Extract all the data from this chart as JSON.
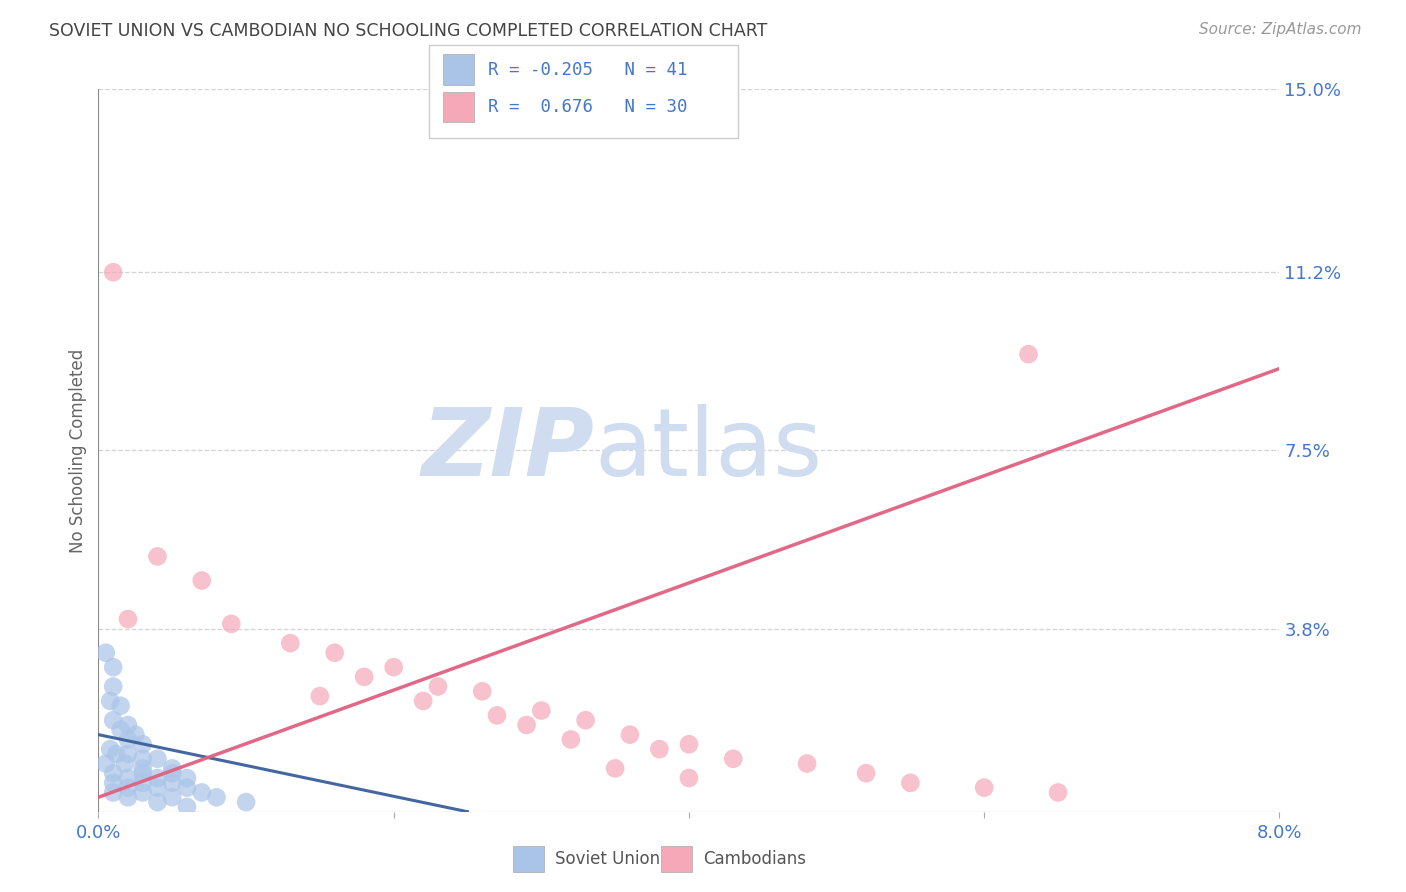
{
  "title": "SOVIET UNION VS CAMBODIAN NO SCHOOLING COMPLETED CORRELATION CHART",
  "source": "Source: ZipAtlas.com",
  "ylabel": "No Schooling Completed",
  "xlabel_soviet": "Soviet Union",
  "xlabel_cambodian": "Cambodians",
  "xlim": [
    0.0,
    0.08
  ],
  "ylim": [
    0.0,
    0.15
  ],
  "xticks": [
    0.0,
    0.02,
    0.04,
    0.06,
    0.08
  ],
  "xtick_labels": [
    "0.0%",
    "",
    "",
    "",
    "8.0%"
  ],
  "ytick_labels_right": [
    "15.0%",
    "11.2%",
    "7.5%",
    "3.8%",
    ""
  ],
  "ytick_positions_right": [
    0.15,
    0.112,
    0.075,
    0.038,
    0.0
  ],
  "soviet_R": -0.205,
  "soviet_N": 41,
  "cambodian_R": 0.676,
  "cambodian_N": 30,
  "soviet_color": "#aac4e8",
  "cambodian_color": "#f4a8b8",
  "soviet_line_color": "#3a5f9a",
  "cambodian_line_color": "#e06080",
  "soviet_scatter": [
    [
      0.0005,
      0.033
    ],
    [
      0.001,
      0.03
    ],
    [
      0.001,
      0.026
    ],
    [
      0.0008,
      0.023
    ],
    [
      0.0015,
      0.022
    ],
    [
      0.001,
      0.019
    ],
    [
      0.002,
      0.018
    ],
    [
      0.0015,
      0.017
    ],
    [
      0.0025,
      0.016
    ],
    [
      0.002,
      0.015
    ],
    [
      0.003,
      0.014
    ],
    [
      0.0008,
      0.013
    ],
    [
      0.0012,
      0.012
    ],
    [
      0.002,
      0.012
    ],
    [
      0.003,
      0.011
    ],
    [
      0.004,
      0.011
    ],
    [
      0.0005,
      0.01
    ],
    [
      0.0018,
      0.01
    ],
    [
      0.003,
      0.009
    ],
    [
      0.005,
      0.009
    ],
    [
      0.001,
      0.008
    ],
    [
      0.003,
      0.008
    ],
    [
      0.005,
      0.008
    ],
    [
      0.002,
      0.007
    ],
    [
      0.004,
      0.007
    ],
    [
      0.006,
      0.007
    ],
    [
      0.001,
      0.006
    ],
    [
      0.003,
      0.006
    ],
    [
      0.005,
      0.006
    ],
    [
      0.002,
      0.005
    ],
    [
      0.004,
      0.005
    ],
    [
      0.006,
      0.005
    ],
    [
      0.001,
      0.004
    ],
    [
      0.003,
      0.004
    ],
    [
      0.007,
      0.004
    ],
    [
      0.002,
      0.003
    ],
    [
      0.005,
      0.003
    ],
    [
      0.008,
      0.003
    ],
    [
      0.004,
      0.002
    ],
    [
      0.01,
      0.002
    ],
    [
      0.006,
      0.001
    ]
  ],
  "cambodian_scatter": [
    [
      0.001,
      0.112
    ],
    [
      0.004,
      0.053
    ],
    [
      0.007,
      0.048
    ],
    [
      0.002,
      0.04
    ],
    [
      0.009,
      0.039
    ],
    [
      0.013,
      0.035
    ],
    [
      0.016,
      0.033
    ],
    [
      0.02,
      0.03
    ],
    [
      0.018,
      0.028
    ],
    [
      0.023,
      0.026
    ],
    [
      0.026,
      0.025
    ],
    [
      0.015,
      0.024
    ],
    [
      0.022,
      0.023
    ],
    [
      0.03,
      0.021
    ],
    [
      0.027,
      0.02
    ],
    [
      0.033,
      0.019
    ],
    [
      0.029,
      0.018
    ],
    [
      0.036,
      0.016
    ],
    [
      0.032,
      0.015
    ],
    [
      0.04,
      0.014
    ],
    [
      0.038,
      0.013
    ],
    [
      0.043,
      0.011
    ],
    [
      0.048,
      0.01
    ],
    [
      0.035,
      0.009
    ],
    [
      0.052,
      0.008
    ],
    [
      0.04,
      0.007
    ],
    [
      0.055,
      0.006
    ],
    [
      0.06,
      0.005
    ],
    [
      0.065,
      0.004
    ],
    [
      0.063,
      0.095
    ]
  ],
  "soviet_line_x": [
    0.0,
    0.025
  ],
  "soviet_line_y": [
    0.016,
    0.0
  ],
  "cambodian_line_x": [
    0.0,
    0.08
  ],
  "cambodian_line_y": [
    0.003,
    0.092
  ],
  "background_color": "#ffffff",
  "grid_color": "#c8c8c8",
  "title_color": "#444444",
  "axis_label_color": "#4477cc",
  "watermark_zip": "ZIP",
  "watermark_atlas": "atlas",
  "watermark_color": "#d0ddf0"
}
